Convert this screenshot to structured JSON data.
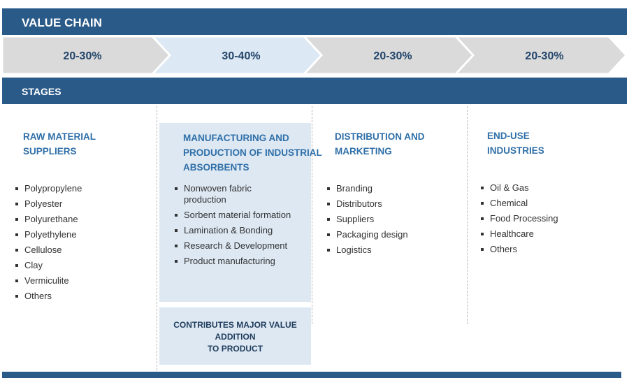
{
  "header": {
    "title": "VALUE CHAIN"
  },
  "chevrons": [
    "20-30%",
    "30-40%",
    "20-30%",
    "20-30%"
  ],
  "stages": {
    "label": "STAGES",
    "columns": [
      {
        "title": [
          "RAW MATERIAL",
          "SUPPLIERS"
        ],
        "items": [
          "Polypropylene",
          "Polyester",
          "Polyurethane",
          "Polyethylene",
          "Cellulose",
          "Clay",
          "Vermiculite",
          "Others"
        ]
      },
      {
        "title": [
          "MANUFACTURING AND",
          "PRODUCTION OF INDUSTRIAL",
          "ABSORBENTS"
        ],
        "items": [
          "Nonwoven fabric production",
          "Sorbent material formation",
          "Lamination & Bonding",
          "Research & Development",
          "Product manufacturing"
        ]
      },
      {
        "title": [
          "DISTRIBUTION AND",
          "MARKETING"
        ],
        "items": [
          "Branding",
          "Distributors",
          "Suppliers",
          "Packaging design",
          "Logistics"
        ]
      },
      {
        "title": [
          "END-USE",
          "INDUSTRIES"
        ],
        "items": [
          "Oil & Gas",
          "Chemical",
          "Food Processing",
          "Healthcare",
          "Others"
        ]
      }
    ]
  },
  "note": [
    "CONTRIBUTES MAJOR VALUE",
    "ADDITION",
    "TO PRODUCT"
  ]
}
